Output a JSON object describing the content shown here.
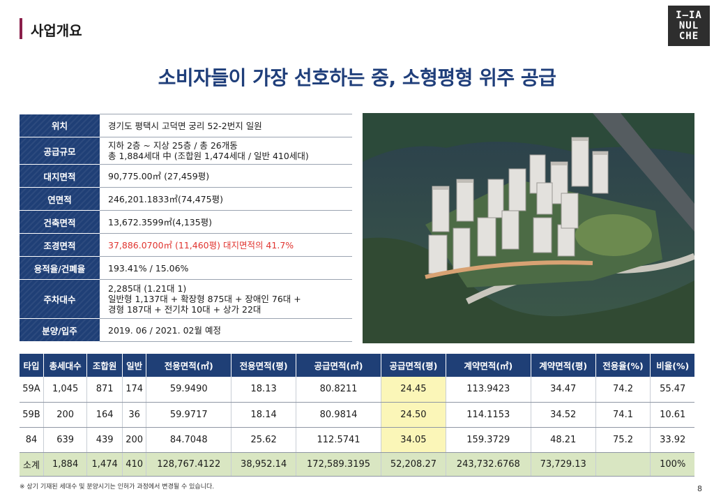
{
  "header": {
    "section_title": "사업개요",
    "logo_lines": [
      "I—IA",
      "NUL",
      "CHE"
    ]
  },
  "headline": "소비자들이 가장 선호하는 중, 소형평형 위주 공급",
  "overview": [
    {
      "label": "위치",
      "lines": [
        "경기도 평택시 고덕면 궁리 52-2번지 일원"
      ]
    },
    {
      "label": "공급규모",
      "lines": [
        "지하 2층 ~ 지상 25층 / 총 26개동",
        "총 1,884세대 中 (조합원 1,474세대 / 일반 410세대)"
      ]
    },
    {
      "label": "대지면적",
      "lines": [
        "90,775.00㎡ (27,459평)"
      ]
    },
    {
      "label": "연면적",
      "lines": [
        "246,201.1833㎡(74,475평)"
      ]
    },
    {
      "label": "건축면적",
      "lines": [
        "13,672.3599㎡(4,135평)"
      ]
    },
    {
      "label": "조경면적",
      "lines": [
        "37,886.0700㎡ (11,460평) 대지면적의 41.7%"
      ]
    },
    {
      "label": "용적율/건폐율",
      "lines": [
        "193.41% / 15.06%"
      ]
    },
    {
      "label": "주차대수",
      "lines": [
        "2,285대 (1.21대 1)",
        "일반형 1,137대 + 확장형 875대 + 장애인 76대 +",
        "경형 187대 + 전기차 10대 + 상가 22대"
      ]
    },
    {
      "label": "분양/입주",
      "lines": [
        "2019. 06 / 2021. 02월 예정"
      ]
    }
  ],
  "units_table": {
    "headers": [
      "타입",
      "총세대수",
      "조합원",
      "일반",
      "전용면적(㎡)",
      "전용면적(평)",
      "공급면적(㎡)",
      "공급면적(평)",
      "계약면적(㎡)",
      "계약면적(평)",
      "전용율(%)",
      "비율(%)"
    ],
    "rows": [
      [
        "59A",
        "1,045",
        "871",
        "174",
        "59.9490",
        "18.13",
        "80.8211",
        "24.45",
        "113.9423",
        "34.47",
        "74.2",
        "55.47"
      ],
      [
        "59B",
        "200",
        "164",
        "36",
        "59.9717",
        "18.14",
        "80.9814",
        "24.50",
        "114.1153",
        "34.52",
        "74.1",
        "10.61"
      ],
      [
        "84",
        "639",
        "439",
        "200",
        "84.7048",
        "25.62",
        "112.5741",
        "34.05",
        "159.3729",
        "48.21",
        "75.2",
        "33.92"
      ]
    ],
    "total": [
      "소계",
      "1,884",
      "1,474",
      "410",
      "128,767.4122",
      "38,952.14",
      "172,589.3195",
      "52,208.27",
      "243,732.6768",
      "73,729.13",
      "",
      "100%"
    ]
  },
  "footnote": "※ 상기 기재된 세대수 및 분양시기는 인허가 과정에서 변경될 수 있습니다.",
  "page_number": "8",
  "colors": {
    "navy": "#1f3f76",
    "headline": "#1f3e7a",
    "accent_bar": "#8a1f4a",
    "highlight": "#fbf6b8",
    "total_row": "#d9e6c2",
    "red_text": "#e0342f"
  }
}
